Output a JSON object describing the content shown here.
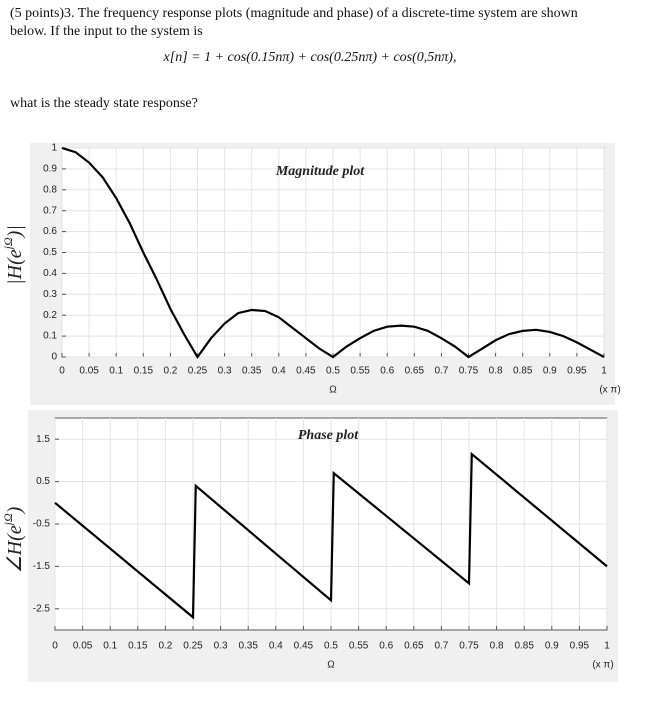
{
  "question": {
    "intro": "(5 points)3. The frequency response plots (magnitude and phase) of a discrete-time system are shown below. If the input to the system is",
    "equation": "x[n] = 1 + cos(0.15nπ) + cos(0.25nπ) + cos(0,5nπ),",
    "prompt": "what is the steady state response?"
  },
  "chart_data": [
    {
      "type": "line",
      "title": "Magnitude plot",
      "y_label": [
        "|H(e",
        "jΩ",
        ")|"
      ],
      "x_label": "Ω",
      "x_unit": "(x π)",
      "x": [
        0,
        0.025,
        0.05,
        0.075,
        0.1,
        0.125,
        0.15,
        0.175,
        0.2,
        0.225,
        0.25,
        0.275,
        0.3,
        0.325,
        0.35,
        0.375,
        0.4,
        0.425,
        0.45,
        0.475,
        0.5,
        0.525,
        0.55,
        0.575,
        0.6,
        0.625,
        0.65,
        0.675,
        0.7,
        0.725,
        0.75,
        0.775,
        0.8,
        0.825,
        0.85,
        0.875,
        0.9,
        0.925,
        0.95,
        0.975,
        1
      ],
      "series": [
        {
          "color": "#000000",
          "values": [
            1,
            0.98,
            0.93,
            0.86,
            0.76,
            0.64,
            0.5,
            0.37,
            0.23,
            0.11,
            0,
            0.09,
            0.16,
            0.21,
            0.225,
            0.22,
            0.19,
            0.14,
            0.09,
            0.04,
            0,
            0.05,
            0.09,
            0.125,
            0.145,
            0.15,
            0.145,
            0.125,
            0.09,
            0.05,
            0,
            0.04,
            0.08,
            0.11,
            0.125,
            0.13,
            0.12,
            0.1,
            0.07,
            0.035,
            0
          ]
        }
      ],
      "xlim": [
        0,
        1
      ],
      "ylim": [
        0,
        1
      ],
      "xticks": [
        0,
        0.05,
        0.1,
        0.15,
        0.2,
        0.25,
        0.3,
        0.35,
        0.4,
        0.45,
        0.5,
        0.55,
        0.6,
        0.65,
        0.7,
        0.75,
        0.8,
        0.85,
        0.9,
        0.95,
        1
      ],
      "yticks": [
        0,
        0.1,
        0.2,
        0.3,
        0.4,
        0.5,
        0.6,
        0.7,
        0.8,
        0.9,
        1
      ],
      "grid": true
    },
    {
      "type": "line",
      "title": "Phase plot",
      "y_label": [
        "∠H(e",
        "jΩ",
        ")"
      ],
      "x_label": "Ω",
      "x_unit": "(x π)",
      "x": [
        0,
        0.25,
        0.255,
        0.5,
        0.505,
        0.75,
        0.755,
        1
      ],
      "series": [
        {
          "color": "#000000",
          "values": [
            0,
            -2.7,
            0.4,
            -2.3,
            0.7,
            -1.9,
            1.15,
            -1.5
          ]
        }
      ],
      "xlim": [
        0,
        1
      ],
      "ylim": [
        -3,
        2
      ],
      "xticks": [
        0,
        0.05,
        0.1,
        0.15,
        0.2,
        0.25,
        0.3,
        0.35,
        0.4,
        0.45,
        0.5,
        0.55,
        0.6,
        0.65,
        0.7,
        0.75,
        0.8,
        0.85,
        0.9,
        0.95,
        1
      ],
      "yticks": [
        -2.5,
        -1.5,
        -0.5,
        0.5,
        1.5
      ],
      "grid": true
    }
  ]
}
